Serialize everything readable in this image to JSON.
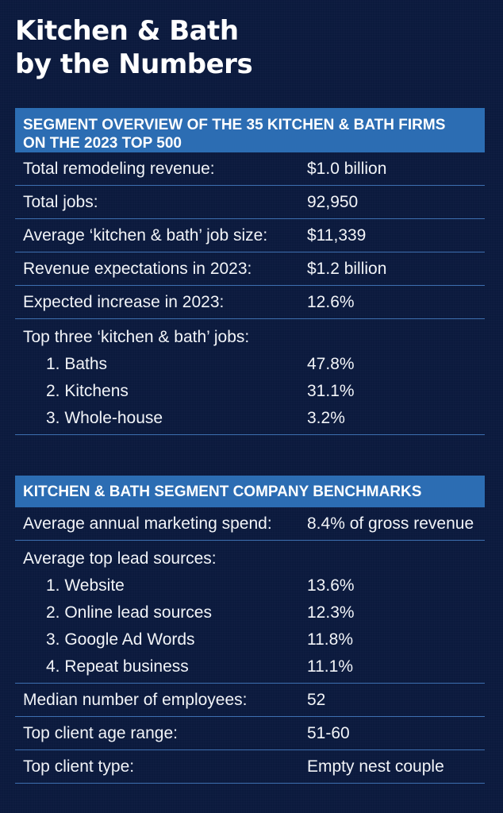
{
  "title": {
    "line1": "Kitchen & Bath",
    "line2": "by the Numbers"
  },
  "sections": [
    {
      "header_line1": "SEGMENT OVERVIEW OF THE 35 KITCHEN & BATH FIRMS",
      "header_line2": "ON THE 2023 TOP 500",
      "rows": [
        {
          "label": "Total remodeling revenue:",
          "value": "$1.0 billion"
        },
        {
          "label": "Total jobs:",
          "value": "92,950"
        },
        {
          "label": "Average ‘kitchen & bath’ job size:",
          "value": "$11,339"
        },
        {
          "label": "Revenue expectations in 2023:",
          "value": "$1.2 billion"
        },
        {
          "label": "Expected increase in 2023:",
          "value": "12.6%"
        }
      ],
      "group": {
        "label": "Top three ‘kitchen & bath’ jobs:",
        "items": [
          {
            "label": "1. Baths",
            "value": "47.8%"
          },
          {
            "label": "2. Kitchens",
            "value": "31.1%"
          },
          {
            "label": "3. Whole-house",
            "value": "3.2%"
          }
        ]
      }
    },
    {
      "header_line1": "KITCHEN & BATH SEGMENT COMPANY BENCHMARKS",
      "rows_before": [
        {
          "label": "Average annual marketing spend:",
          "value": "8.4% of gross revenue"
        }
      ],
      "group": {
        "label": "Average top lead sources:",
        "items": [
          {
            "label": "1. Website",
            "value": "13.6%"
          },
          {
            "label": "2. Online lead sources",
            "value": "12.3%"
          },
          {
            "label": "3. Google Ad Words",
            "value": "11.8%"
          },
          {
            "label": "4. Repeat business",
            "value": "11.1%"
          }
        ]
      },
      "rows_after": [
        {
          "label": "Median number of employees:",
          "value": "52"
        },
        {
          "label": "Top client age range:",
          "value": "51-60"
        },
        {
          "label": "Top client type:",
          "value": "Empty nest couple"
        }
      ]
    }
  ]
}
